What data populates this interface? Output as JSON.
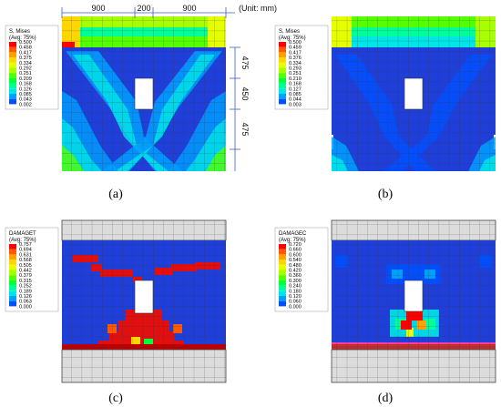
{
  "dimensions": {
    "top": [
      "900",
      "200",
      "900"
    ],
    "unit": "(Unit: mm)",
    "side": [
      "475",
      "450",
      "475"
    ]
  },
  "panels": [
    {
      "caption": "(a)",
      "legend_title": [
        "S, Mises",
        "(Avg: 75%)"
      ],
      "legend_values": [
        "0.500",
        "0.458",
        "0.417",
        "0.375",
        "0.334",
        "0.292",
        "0.251",
        "0.209",
        "0.168",
        "0.126",
        "0.085",
        "0.043",
        "0.002"
      ]
    },
    {
      "caption": "(b)",
      "legend_title": [
        "S, Mises",
        "(Avg: 75%)"
      ],
      "legend_values": [
        "0.500",
        "0.459",
        "0.417",
        "0.376",
        "0.334",
        "0.293",
        "0.251",
        "0.210",
        "0.168",
        "0.127",
        "0.085",
        "0.044",
        "0.003"
      ]
    },
    {
      "caption": "(c)",
      "legend_title": [
        "DAMAGET",
        "(Avg: 75%)"
      ],
      "legend_values": [
        "0.757",
        "0.694",
        "0.631",
        "0.568",
        "0.505",
        "0.442",
        "0.379",
        "0.315",
        "0.252",
        "0.189",
        "0.126",
        "0.063",
        "0.000"
      ]
    },
    {
      "caption": "(d)",
      "legend_title": [
        "DAMAGEC",
        "(Avg: 75%)"
      ],
      "legend_values": [
        "0.720",
        "0.660",
        "0.600",
        "0.540",
        "0.480",
        "0.420",
        "0.360",
        "0.300",
        "0.240",
        "0.180",
        "0.120",
        "0.060",
        "0.000"
      ]
    }
  ],
  "colors": {
    "contour": [
      "#ff0000",
      "#ff5a00",
      "#ffa000",
      "#ffd600",
      "#e6ff00",
      "#a8ff00",
      "#54ff00",
      "#00ff3c",
      "#00ff9a",
      "#00e6e6",
      "#00a0ff",
      "#0050ff",
      "#0000e6"
    ],
    "mesh_grey": "#dcdcdc",
    "wall_blue": "#1f3fd8"
  }
}
